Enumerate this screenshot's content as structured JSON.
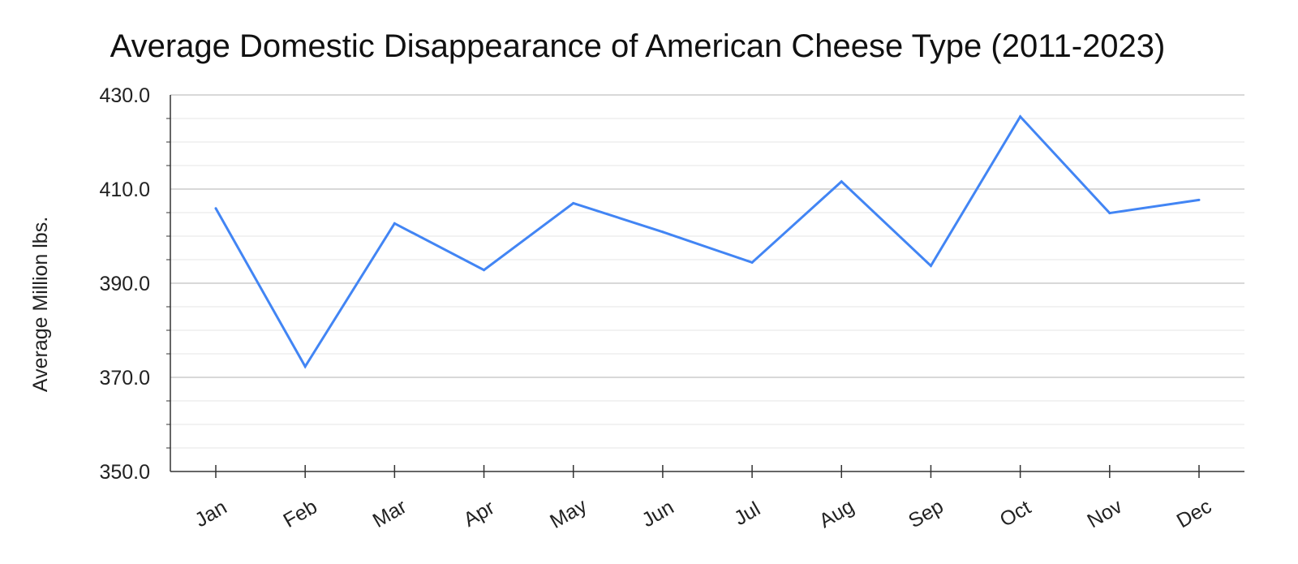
{
  "chart_data": {
    "type": "line",
    "title": "Average Domestic Disappearance of American Cheese Type (2011-2023)",
    "xlabel": "",
    "ylabel": "Average Million lbs.",
    "categories": [
      "Jan",
      "Feb",
      "Mar",
      "Apr",
      "May",
      "Jun",
      "Jul",
      "Aug",
      "Sep",
      "Oct",
      "Nov",
      "Dec"
    ],
    "series": [
      {
        "values": [
          405.9,
          372.3,
          402.7,
          392.8,
          407.0,
          400.9,
          394.4,
          411.6,
          393.7,
          425.4,
          404.9,
          407.7
        ]
      }
    ],
    "ylim": [
      350,
      430
    ],
    "yticks": [
      "350.0",
      "370.0",
      "390.0",
      "410.0",
      "430.0"
    ],
    "grid": true,
    "colors": {
      "line": "#4285f4",
      "grid_major": "#cccccc",
      "grid_minor": "#e6e6e6",
      "axis": "#333333"
    }
  }
}
